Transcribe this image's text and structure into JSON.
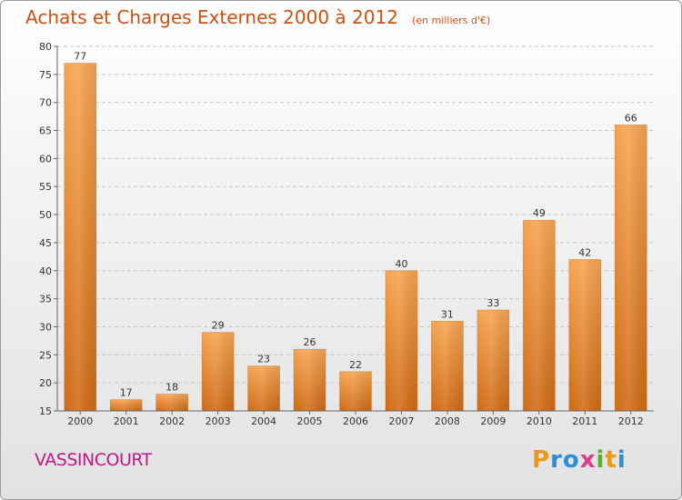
{
  "header": {
    "title": "Achats et Charges Externes 2000 à 2012",
    "subtitle": "(en milliers d'€)"
  },
  "footer": {
    "commune": "VASSINCOURT",
    "logo_letters": [
      "P",
      "r",
      "o",
      "x",
      "i",
      "t",
      "i"
    ],
    "logo_colors": [
      "#e89a18",
      "#2a8fd8",
      "#2a8fd8",
      "#e03a8a",
      "#58b030",
      "#e89a18",
      "#2a8fd8"
    ]
  },
  "colors": {
    "bar_light": "#f6a450",
    "bar_dark": "#cf6a14",
    "axis": "#666666",
    "grid": "#c8c8c8",
    "text": "#333333"
  },
  "chart_data": {
    "type": "bar",
    "categories": [
      "2000",
      "2001",
      "2002",
      "2003",
      "2004",
      "2005",
      "2006",
      "2007",
      "2008",
      "2009",
      "2010",
      "2011",
      "2012"
    ],
    "values": [
      77,
      17,
      18,
      29,
      23,
      26,
      22,
      40,
      31,
      33,
      49,
      42,
      66
    ],
    "ylim": [
      15,
      80
    ],
    "yticks": [
      15,
      20,
      25,
      30,
      35,
      40,
      45,
      50,
      55,
      60,
      65,
      70,
      75,
      80
    ],
    "grid": "horizontal dashed",
    "title": "Achats et Charges Externes 2000 à 2012",
    "xlabel": "",
    "ylabel": ""
  }
}
